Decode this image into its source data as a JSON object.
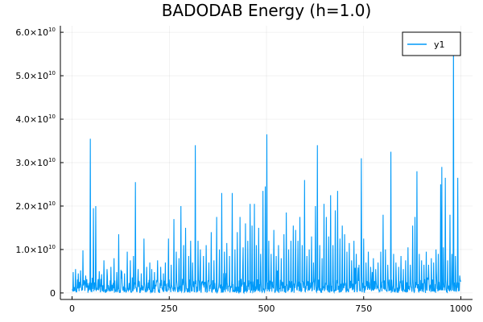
{
  "chart_data": {
    "type": "line",
    "title": "BADODAB Energy (h=1.0)",
    "xlabel": "",
    "ylabel": "",
    "xlim": [
      -30,
      1030
    ],
    "ylim": [
      -1500000000,
      61500000000
    ],
    "grid": true,
    "legend_position": "top-right",
    "x_ticks": [
      {
        "value": 0,
        "label": "0"
      },
      {
        "value": 250,
        "label": "250"
      },
      {
        "value": 500,
        "label": "500"
      },
      {
        "value": 750,
        "label": "750"
      },
      {
        "value": 1000,
        "label": "1000"
      }
    ],
    "y_ticks": [
      {
        "value": 0,
        "label": "0",
        "mant": "",
        "exp": ""
      },
      {
        "value": 10000000000,
        "label": "1.0×10^10",
        "mant": "1.0×10",
        "exp": "10"
      },
      {
        "value": 20000000000,
        "label": "2.0×10^10",
        "mant": "2.0×10",
        "exp": "10"
      },
      {
        "value": 30000000000,
        "label": "3.0×10^10",
        "mant": "3.0×10",
        "exp": "10"
      },
      {
        "value": 40000000000,
        "label": "4.0×10^10",
        "mant": "4.0×10",
        "exp": "10"
      },
      {
        "value": 50000000000,
        "label": "5.0×10^10",
        "mant": "5.0×10",
        "exp": "10"
      },
      {
        "value": 60000000000,
        "label": "6.0×10^10",
        "mant": "6.0×10",
        "exp": "10"
      }
    ],
    "series": [
      {
        "name": "y1",
        "color": "#009af9",
        "peaks": [
          [
            3,
            4800000000.0
          ],
          [
            9,
            5500000000.0
          ],
          [
            16,
            4500000000.0
          ],
          [
            22,
            5200000000.0
          ],
          [
            28,
            9800000000.0
          ],
          [
            35,
            4000000000.0
          ],
          [
            47,
            35500000000.0
          ],
          [
            55,
            19500000000.0
          ],
          [
            61,
            20000000000.0
          ],
          [
            70,
            5000000000.0
          ],
          [
            82,
            7500000000.0
          ],
          [
            90,
            5500000000.0
          ],
          [
            100,
            6000000000.0
          ],
          [
            108,
            8000000000.0
          ],
          [
            115,
            4800000000.0
          ],
          [
            120,
            13500000000.0
          ],
          [
            128,
            5000000000.0
          ],
          [
            135,
            4500000000.0
          ],
          [
            142,
            9500000000.0
          ],
          [
            150,
            7500000000.0
          ],
          [
            158,
            8500000000.0
          ],
          [
            163,
            25500000000.0
          ],
          [
            170,
            5500000000.0
          ],
          [
            178,
            4500000000.0
          ],
          [
            185,
            12500000000.0
          ],
          [
            192,
            6000000000.0
          ],
          [
            200,
            7000000000.0
          ],
          [
            205,
            5500000000.0
          ],
          [
            212,
            4800000000.0
          ],
          [
            220,
            7500000000.0
          ],
          [
            228,
            6000000000.0
          ],
          [
            235,
            4500000000.0
          ],
          [
            240,
            7000000000.0
          ],
          [
            248,
            12500000000.0
          ],
          [
            255,
            6500000000.0
          ],
          [
            262,
            17000000000.0
          ],
          [
            268,
            9500000000.0
          ],
          [
            275,
            8000000000.0
          ],
          [
            280,
            20000000000.0
          ],
          [
            287,
            11000000000.0
          ],
          [
            292,
            15000000000.0
          ],
          [
            300,
            8500000000.0
          ],
          [
            305,
            12000000000.0
          ],
          [
            310,
            7000000000.0
          ],
          [
            317,
            34000000000.0
          ],
          [
            324,
            12000000000.0
          ],
          [
            330,
            10000000000.0
          ],
          [
            338,
            8500000000.0
          ],
          [
            345,
            11000000000.0
          ],
          [
            352,
            7000000000.0
          ],
          [
            358,
            14000000000.0
          ],
          [
            365,
            7500000000.0
          ],
          [
            372,
            17500000000.0
          ],
          [
            379,
            10000000000.0
          ],
          [
            385,
            23000000000.0
          ],
          [
            392,
            9500000000.0
          ],
          [
            398,
            11500000000.0
          ],
          [
            405,
            8500000000.0
          ],
          [
            412,
            23000000000.0
          ],
          [
            419,
            10000000000.0
          ],
          [
            425,
            14000000000.0
          ],
          [
            432,
            17500000000.0
          ],
          [
            440,
            10500000000.0
          ],
          [
            446,
            16000000000.0
          ],
          [
            452,
            12000000000.0
          ],
          [
            458,
            20500000000.0
          ],
          [
            463,
            15500000000.0
          ],
          [
            469,
            20500000000.0
          ],
          [
            474,
            11000000000.0
          ],
          [
            480,
            15000000000.0
          ],
          [
            485,
            9000000000.0
          ],
          [
            491,
            23500000000.0
          ],
          [
            497,
            24500000000.0
          ],
          [
            501,
            36500000000.0
          ],
          [
            506,
            12000000000.0
          ],
          [
            512,
            9000000000.0
          ],
          [
            519,
            14500000000.0
          ],
          [
            525,
            8500000000.0
          ],
          [
            531,
            11000000000.0
          ],
          [
            538,
            8000000000.0
          ],
          [
            545,
            13500000000.0
          ],
          [
            551,
            18500000000.0
          ],
          [
            557,
            10000000000.0
          ],
          [
            563,
            12000000000.0
          ],
          [
            569,
            15500000000.0
          ],
          [
            575,
            14500000000.0
          ],
          [
            581,
            12000000000.0
          ],
          [
            586,
            17500000000.0
          ],
          [
            592,
            11000000000.0
          ],
          [
            598,
            26000000000.0
          ],
          [
            604,
            8500000000.0
          ],
          [
            610,
            10000000000.0
          ],
          [
            616,
            13000000000.0
          ],
          [
            621,
            7000000000.0
          ],
          [
            626,
            20000000000.0
          ],
          [
            631,
            34000000000.0
          ],
          [
            637,
            11000000000.0
          ],
          [
            643,
            8000000000.0
          ],
          [
            648,
            20500000000.0
          ],
          [
            654,
            17500000000.0
          ],
          [
            660,
            13000000000.0
          ],
          [
            665,
            22500000000.0
          ],
          [
            671,
            11000000000.0
          ],
          [
            677,
            19000000000.0
          ],
          [
            683,
            23500000000.0
          ],
          [
            689,
            12500000000.0
          ],
          [
            695,
            15500000000.0
          ],
          [
            701,
            13500000000.0
          ],
          [
            707,
            9500000000.0
          ],
          [
            713,
            11500000000.0
          ],
          [
            719,
            7500000000.0
          ],
          [
            725,
            12000000000.0
          ],
          [
            731,
            9000000000.0
          ],
          [
            738,
            6500000000.0
          ],
          [
            744,
            31000000000.0
          ],
          [
            750,
            12500000000.0
          ],
          [
            756,
            7000000000.0
          ],
          [
            762,
            9500000000.0
          ],
          [
            768,
            6000000000.0
          ],
          [
            775,
            8000000000.0
          ],
          [
            781,
            5500000000.0
          ],
          [
            787,
            7000000000.0
          ],
          [
            794,
            9500000000.0
          ],
          [
            800,
            18000000000.0
          ],
          [
            806,
            10000000000.0
          ],
          [
            812,
            6500000000.0
          ],
          [
            820,
            32500000000.0
          ],
          [
            827,
            9000000000.0
          ],
          [
            833,
            7000000000.0
          ],
          [
            840,
            6000000000.0
          ],
          [
            846,
            8500000000.0
          ],
          [
            852,
            5500000000.0
          ],
          [
            858,
            7500000000.0
          ],
          [
            864,
            10500000000.0
          ],
          [
            870,
            6500000000.0
          ],
          [
            876,
            15500000000.0
          ],
          [
            882,
            17500000000.0
          ],
          [
            887,
            28000000000.0
          ],
          [
            893,
            9000000000.0
          ],
          [
            899,
            7500000000.0
          ],
          [
            905,
            6500000000.0
          ],
          [
            911,
            9500000000.0
          ],
          [
            917,
            6500000000.0
          ],
          [
            924,
            8000000000.0
          ],
          [
            930,
            7000000000.0
          ],
          [
            936,
            10000000000.0
          ],
          [
            942,
            9000000000.0
          ],
          [
            948,
            25000000000.0
          ],
          [
            951,
            29000000000.0
          ],
          [
            955,
            10500000000.0
          ],
          [
            960,
            26500000000.0
          ],
          [
            966,
            7500000000.0
          ],
          [
            972,
            18000000000.0
          ],
          [
            977,
            9000000000.0
          ],
          [
            981,
            60000000000.0
          ],
          [
            986,
            8500000000.0
          ],
          [
            992,
            26500000000.0
          ],
          [
            997,
            4000000000.0
          ]
        ]
      }
    ]
  }
}
